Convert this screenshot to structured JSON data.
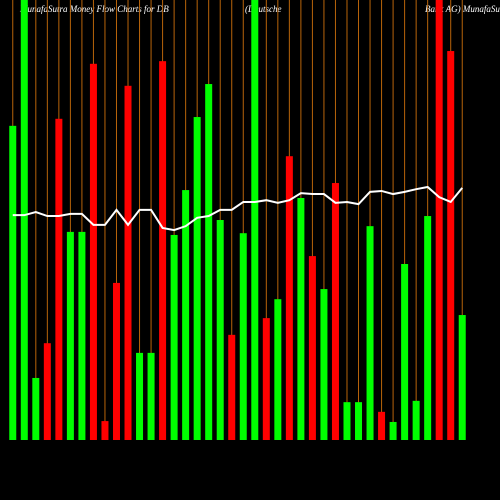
{
  "chart_data": {
    "type": "bar-line",
    "title": [
      "MunafaSutra  Money Flow  Charts for DB",
      "(Deutsche",
      "Bank AG) MunafaSutra.com"
    ],
    "ylim": [
      0,
      100
    ],
    "grid_color": "#b8640a",
    "series": [
      {
        "type": "bar",
        "values": [
          71.4,
          100,
          14.1,
          22,
          73,
          47.3,
          47.3,
          85.5,
          4.3,
          35.7,
          80.5,
          19.8,
          19.8,
          86.1,
          46.6,
          56.8,
          73.4,
          80.9,
          50,
          23.9,
          47,
          100,
          27.7,
          32,
          64.5,
          55,
          41.8,
          34.3,
          58.4,
          8.6,
          8.6,
          48.6,
          6.4,
          4.1,
          40,
          8.9,
          50.9,
          100,
          88.4,
          28.4
        ],
        "colors": [
          "#00ff00",
          "#00ff00",
          "#00ff00",
          "#ff0000",
          "#ff0000",
          "#00ff00",
          "#00ff00",
          "#ff0000",
          "#ff0000",
          "#ff0000",
          "#ff0000",
          "#00ff00",
          "#00ff00",
          "#ff0000",
          "#00ff00",
          "#00ff00",
          "#00ff00",
          "#00ff00",
          "#00ff00",
          "#ff0000",
          "#00ff00",
          "#00ff00",
          "#ff0000",
          "#00ff00",
          "#ff0000",
          "#00ff00",
          "#ff0000",
          "#00ff00",
          "#ff0000",
          "#00ff00",
          "#00ff00",
          "#00ff00",
          "#ff0000",
          "#00ff00",
          "#00ff00",
          "#00ff00",
          "#00ff00",
          "#ff0000",
          "#ff0000",
          "#00ff00"
        ]
      },
      {
        "type": "line",
        "color": "#ffffff",
        "values": [
          51.1,
          51.1,
          51.8,
          50.9,
          50.9,
          51.4,
          51.4,
          48.9,
          48.9,
          52.3,
          48.9,
          52.3,
          52.3,
          48.2,
          47.7,
          48.6,
          50.5,
          50.9,
          52.3,
          52.3,
          54.1,
          54.1,
          54.5,
          53.9,
          54.5,
          56.1,
          55.9,
          55.9,
          53.9,
          54.1,
          53.6,
          56.4,
          56.6,
          55.9,
          56.4,
          57,
          57.5,
          55.2,
          54.1,
          57.3
        ]
      }
    ]
  }
}
